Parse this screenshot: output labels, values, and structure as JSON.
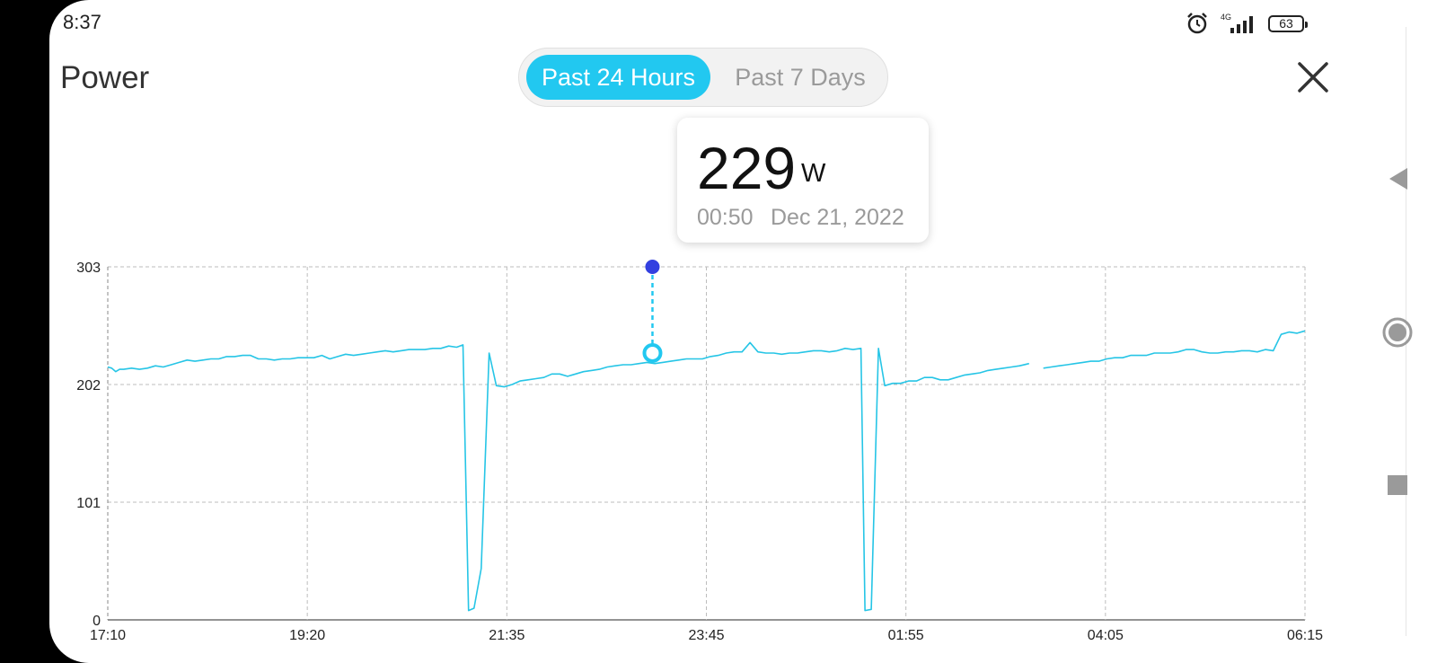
{
  "status_bar": {
    "time": "8:37",
    "network": "4G",
    "battery": "63"
  },
  "header": {
    "title": "Power",
    "tabs": [
      {
        "label": "Past 24 Hours",
        "active": true
      },
      {
        "label": "Past 7 Days",
        "active": false
      }
    ],
    "close_icon": "close-icon"
  },
  "tooltip": {
    "value": "229",
    "unit": "W",
    "time": "00:50",
    "date": "Dec 21, 2022"
  },
  "colors": {
    "accent": "#22c8f0",
    "line": "#26c5e6",
    "marker": "#3340e0",
    "grid": "#bdbdbd"
  },
  "nav_icons": [
    "back-icon",
    "home-icon",
    "recent-apps-icon"
  ],
  "chart_data": {
    "type": "line",
    "ylim": [
      0,
      303
    ],
    "y_ticks": [
      0,
      101,
      202,
      303
    ],
    "x_ticks": [
      "17:10",
      "19:20",
      "21:35",
      "23:45",
      "01:55",
      "04:05",
      "06:15"
    ],
    "grid": true,
    "selected_point": {
      "x": 6.87,
      "y": 229
    },
    "series": [
      {
        "segments": [
          [
            [
              0.0,
              217
            ],
            [
              0.05,
              216
            ],
            [
              0.1,
              213
            ],
            [
              0.15,
              215
            ],
            [
              0.2,
              215
            ],
            [
              0.3,
              216
            ],
            [
              0.4,
              215
            ],
            [
              0.5,
              216
            ],
            [
              0.6,
              218
            ],
            [
              0.7,
              217
            ],
            [
              0.8,
              219
            ],
            [
              0.9,
              221
            ],
            [
              1.0,
              223
            ],
            [
              1.1,
              222
            ],
            [
              1.2,
              223
            ],
            [
              1.3,
              224
            ],
            [
              1.4,
              224
            ],
            [
              1.5,
              226
            ],
            [
              1.6,
              226
            ],
            [
              1.7,
              227
            ],
            [
              1.8,
              227
            ],
            [
              1.9,
              224
            ],
            [
              2.0,
              224
            ],
            [
              2.1,
              223
            ],
            [
              2.2,
              224
            ],
            [
              2.3,
              224
            ],
            [
              2.4,
              225
            ],
            [
              2.5,
              225
            ],
            [
              2.6,
              225
            ],
            [
              2.7,
              227
            ],
            [
              2.8,
              224
            ],
            [
              2.9,
              226
            ],
            [
              3.0,
              228
            ],
            [
              3.1,
              227
            ],
            [
              3.2,
              228
            ],
            [
              3.3,
              229
            ],
            [
              3.4,
              230
            ],
            [
              3.5,
              231
            ],
            [
              3.6,
              230
            ],
            [
              3.7,
              231
            ],
            [
              3.8,
              232
            ],
            [
              3.9,
              232
            ],
            [
              4.0,
              232
            ],
            [
              4.1,
              233
            ],
            [
              4.2,
              233
            ],
            [
              4.3,
              235
            ],
            [
              4.4,
              234
            ],
            [
              4.48,
              236
            ],
            [
              4.55,
              8
            ],
            [
              4.62,
              10
            ],
            [
              4.71,
              44
            ],
            [
              4.81,
              229
            ],
            [
              4.9,
              201
            ],
            [
              5.0,
              200
            ],
            [
              5.1,
              202
            ],
            [
              5.2,
              205
            ],
            [
              5.3,
              206
            ],
            [
              5.4,
              207
            ],
            [
              5.5,
              208
            ],
            [
              5.6,
              211
            ],
            [
              5.7,
              211
            ],
            [
              5.8,
              209
            ],
            [
              5.9,
              211
            ],
            [
              6.0,
              213
            ],
            [
              6.1,
              214
            ],
            [
              6.2,
              215
            ],
            [
              6.3,
              217
            ],
            [
              6.4,
              218
            ],
            [
              6.5,
              219
            ],
            [
              6.6,
              219
            ],
            [
              6.7,
              220
            ],
            [
              6.8,
              221
            ],
            [
              6.9,
              220
            ],
            [
              7.0,
              221
            ],
            [
              7.1,
              222
            ],
            [
              7.2,
              223
            ],
            [
              7.3,
              224
            ],
            [
              7.4,
              224
            ],
            [
              7.5,
              224
            ],
            [
              7.6,
              226
            ],
            [
              7.7,
              227
            ],
            [
              7.8,
              229
            ],
            [
              7.9,
              230
            ],
            [
              8.0,
              230
            ],
            [
              8.1,
              238
            ],
            [
              8.2,
              230
            ],
            [
              8.3,
              229
            ],
            [
              8.4,
              229
            ],
            [
              8.5,
              228
            ],
            [
              8.6,
              229
            ],
            [
              8.7,
              229
            ],
            [
              8.8,
              230
            ],
            [
              8.9,
              231
            ],
            [
              9.0,
              231
            ],
            [
              9.1,
              230
            ],
            [
              9.2,
              231
            ],
            [
              9.3,
              233
            ],
            [
              9.4,
              232
            ],
            [
              9.5,
              233
            ],
            [
              9.55,
              8
            ],
            [
              9.63,
              9
            ],
            [
              9.72,
              233
            ],
            [
              9.8,
              201
            ],
            [
              9.9,
              203
            ],
            [
              10.0,
              203
            ],
            [
              10.1,
              205
            ],
            [
              10.2,
              205
            ],
            [
              10.3,
              208
            ],
            [
              10.4,
              208
            ],
            [
              10.5,
              206
            ],
            [
              10.6,
              206
            ],
            [
              10.7,
              208
            ],
            [
              10.8,
              210
            ],
            [
              10.9,
              211
            ],
            [
              11.0,
              212
            ],
            [
              11.1,
              214
            ],
            [
              11.2,
              215
            ],
            [
              11.3,
              216
            ],
            [
              11.4,
              217
            ],
            [
              11.5,
              218
            ],
            [
              11.62,
              220
            ]
          ],
          [
            [
              11.8,
              216
            ],
            [
              11.9,
              217
            ],
            [
              12.0,
              218
            ],
            [
              12.1,
              219
            ],
            [
              12.2,
              220
            ],
            [
              12.3,
              221
            ],
            [
              12.4,
              222
            ],
            [
              12.5,
              222
            ],
            [
              12.6,
              224
            ],
            [
              12.7,
              225
            ],
            [
              12.8,
              225
            ],
            [
              12.9,
              227
            ],
            [
              13.0,
              227
            ],
            [
              13.1,
              227
            ],
            [
              13.2,
              229
            ],
            [
              13.3,
              229
            ],
            [
              13.4,
              229
            ],
            [
              13.5,
              230
            ],
            [
              13.6,
              232
            ],
            [
              13.7,
              232
            ],
            [
              13.8,
              230
            ],
            [
              13.9,
              229
            ],
            [
              14.0,
              229
            ],
            [
              14.1,
              230
            ],
            [
              14.2,
              230
            ],
            [
              14.3,
              231
            ],
            [
              14.4,
              231
            ],
            [
              14.5,
              230
            ],
            [
              14.6,
              232
            ],
            [
              14.7,
              231
            ],
            [
              14.8,
              245
            ],
            [
              14.9,
              247
            ],
            [
              15.0,
              246
            ],
            [
              15.1,
              248
            ]
          ]
        ]
      }
    ]
  }
}
